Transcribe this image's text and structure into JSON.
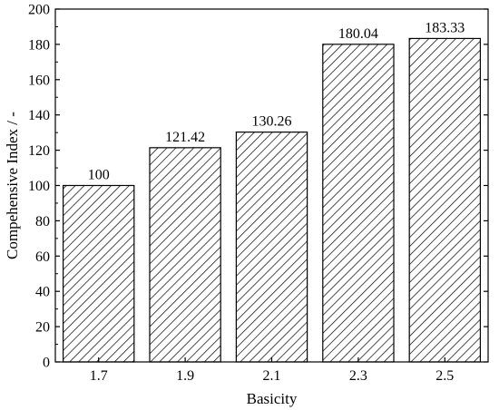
{
  "chart_data": {
    "type": "bar",
    "categories": [
      "1.7",
      "1.9",
      "2.1",
      "2.3",
      "2.5"
    ],
    "values": [
      100,
      121.42,
      130.26,
      180.04,
      183.33
    ],
    "data_labels": [
      "100",
      "121.42",
      "130.26",
      "180.04",
      "183.33"
    ],
    "title": "",
    "xlabel": "Basicity",
    "ylabel": "Compehensive Index / -",
    "ylim": [
      0,
      200
    ],
    "yticks": [
      "0",
      "20",
      "40",
      "60",
      "80",
      "100",
      "120",
      "140",
      "160",
      "180",
      "200"
    ],
    "bar_fill": "hatched",
    "grid": false,
    "legend": "none",
    "colors": {
      "bar_stroke": "#000000",
      "hatch": "#000000",
      "background": "#ffffff"
    }
  }
}
